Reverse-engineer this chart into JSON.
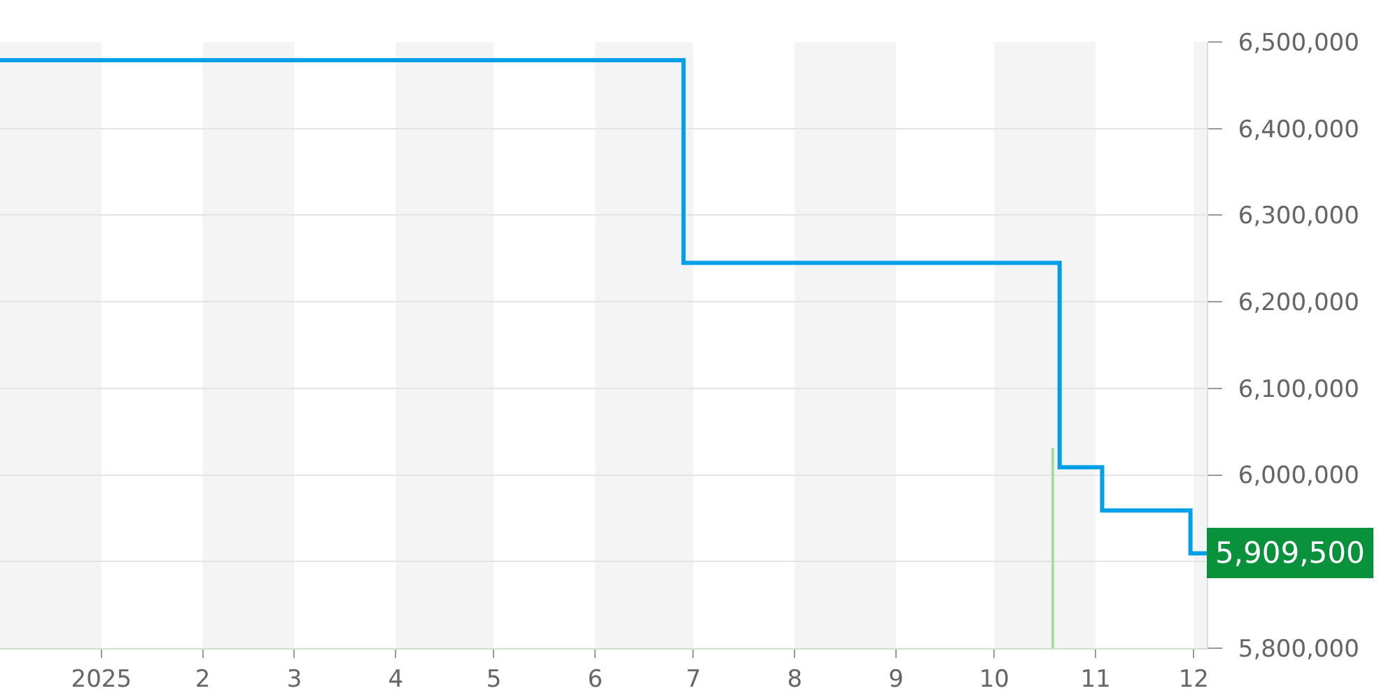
{
  "chart_data": {
    "type": "step",
    "series": [
      {
        "color": "#00a0e9",
        "x": [
          "2024-12-01",
          "2025-06-28",
          "2025-10-21",
          "2025-11-03",
          "2025-11-30",
          "2025-12-05"
        ],
        "values": [
          6479000,
          6245000,
          6009000,
          5959000,
          5909500,
          5909500
        ],
        "value_labels": [
          null,
          null,
          null,
          null,
          null,
          "5,909,500"
        ]
      },
      {
        "type": "bar",
        "color": "#a8dba8",
        "x": [
          "2025-10-19"
        ],
        "values": [
          231000
        ],
        "base": [
          5800000
        ]
      }
    ],
    "xlim": [
      "2024-12-01",
      "2025-12-05"
    ],
    "xticks": [
      {
        "value": "2025-01-01",
        "label": "2025"
      },
      {
        "value": "2025-02-01",
        "label": "2"
      },
      {
        "value": "2025-03-01",
        "label": "3"
      },
      {
        "value": "2025-04-01",
        "label": "4"
      },
      {
        "value": "2025-05-01",
        "label": "5"
      },
      {
        "value": "2025-06-01",
        "label": "6"
      },
      {
        "value": "2025-07-01",
        "label": "7"
      },
      {
        "value": "2025-08-01",
        "label": "8"
      },
      {
        "value": "2025-09-01",
        "label": "9"
      },
      {
        "value": "2025-10-01",
        "label": "10"
      },
      {
        "value": "2025-11-01",
        "label": "11"
      },
      {
        "value": "2025-12-01",
        "label": "12"
      }
    ],
    "ylim": [
      5800000,
      6500000
    ],
    "yticks": [
      {
        "value": 5800000,
        "label": "5,800,000"
      },
      {
        "value": 5900000,
        "label": null
      },
      {
        "value": 6000000,
        "label": "6,000,000"
      },
      {
        "value": 6100000,
        "label": "6,100,000"
      },
      {
        "value": 6200000,
        "label": "6,200,000"
      },
      {
        "value": 6300000,
        "label": "6,300,000"
      },
      {
        "value": 6400000,
        "label": "6,400,000"
      },
      {
        "value": 6500000,
        "label": "6,500,000"
      }
    ],
    "bands": [
      {
        "axis": "x",
        "from": "2024-12-01",
        "to": "2025-01-01",
        "color": "#f4f4f4"
      },
      {
        "axis": "x",
        "from": "2025-02-01",
        "to": "2025-03-01",
        "color": "#f4f4f4"
      },
      {
        "axis": "x",
        "from": "2025-04-01",
        "to": "2025-05-01",
        "color": "#f4f4f4"
      },
      {
        "axis": "x",
        "from": "2025-06-01",
        "to": "2025-07-01",
        "color": "#f4f4f4"
      },
      {
        "axis": "x",
        "from": "2025-08-01",
        "to": "2025-09-01",
        "color": "#f4f4f4"
      },
      {
        "axis": "x",
        "from": "2025-10-01",
        "to": "2025-11-01",
        "color": "#f4f4f4"
      },
      {
        "axis": "x",
        "from": "2025-12-01",
        "to": "2025-12-05",
        "color": "#f4f4f4"
      }
    ],
    "grid": "y"
  }
}
